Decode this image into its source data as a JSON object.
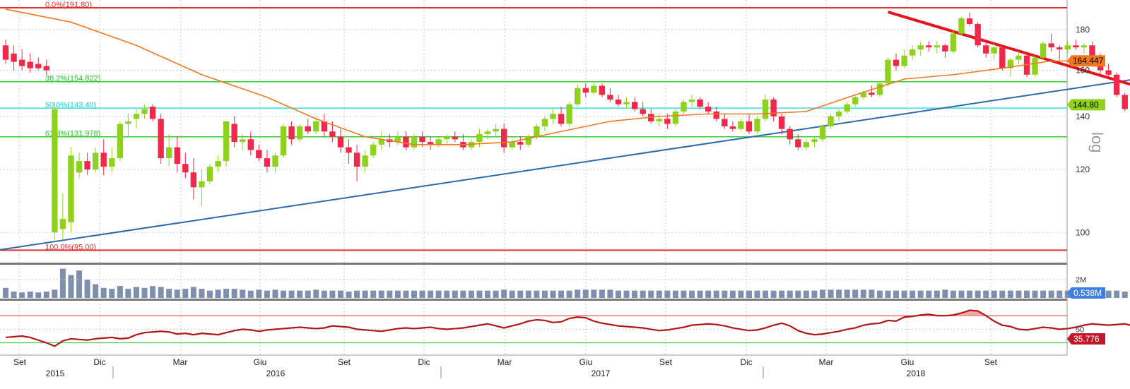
{
  "chart_data": {
    "type": "candlestick",
    "scale": "log",
    "scale_label": "log",
    "grid": true,
    "ylim": [
      92,
      193
    ],
    "y_ticks": [
      100,
      120,
      140,
      160,
      180
    ],
    "x_month_labels": [
      "Set",
      "Dic",
      "Mar",
      "Giu",
      "Set",
      "Dic",
      "Mar",
      "Giu",
      "Set",
      "Dic",
      "Mar",
      "Giu",
      "Set"
    ],
    "x_year_labels": [
      "2015",
      "2016",
      "2017",
      "2018"
    ],
    "colors": {
      "up": "#8fd21e",
      "down": "#f0284a",
      "ma": "#f07820",
      "trend_up": "#2f6aa8",
      "trend_down": "#e3161e",
      "fib_0": "#e23030",
      "fib_382": "#33cc33",
      "fib_50": "#33e0e0",
      "fib_618": "#33cc33",
      "fib_100": "#e23030",
      "volume": "#7f8fae",
      "rsi": "#b01818"
    },
    "fibonacci": [
      {
        "label": "0.0%(191.80)",
        "value": 191.8
      },
      {
        "label": "38.2%(154.822)",
        "value": 154.822
      },
      {
        "label": "50.0%(143.40)",
        "value": 143.4
      },
      {
        "label": "61.8%(131.978)",
        "value": 131.978
      },
      {
        "label": "100.0%(95.00)",
        "value": 95.0
      }
    ],
    "price_badges": [
      {
        "text": "164.447",
        "value": 164.447,
        "color": "#f07820"
      },
      {
        "text": "144.80",
        "value": 144.8,
        "color": "#8fd21e"
      }
    ],
    "candles_ohlc": [
      [
        172,
        175,
        163,
        165
      ],
      [
        168,
        172,
        160,
        164
      ],
      [
        165,
        170,
        160,
        162
      ],
      [
        164,
        168,
        159,
        161
      ],
      [
        163,
        166,
        160,
        161
      ],
      [
        162,
        165,
        158,
        160
      ],
      [
        100,
        146,
        98,
        143
      ],
      [
        101,
        112,
        98,
        104
      ],
      [
        103,
        128,
        100,
        125
      ],
      [
        119,
        126,
        117,
        123
      ],
      [
        123,
        126,
        118,
        120
      ],
      [
        120,
        128,
        119,
        126
      ],
      [
        126,
        131,
        118,
        121
      ],
      [
        121,
        128,
        119,
        124
      ],
      [
        124,
        138,
        123,
        137
      ],
      [
        137,
        141,
        132,
        138
      ],
      [
        139,
        143,
        135,
        141
      ],
      [
        141,
        145,
        139,
        143
      ],
      [
        144,
        145,
        138,
        139
      ],
      [
        139,
        141,
        122,
        124
      ],
      [
        124,
        133,
        121,
        128
      ],
      [
        128,
        132,
        119,
        122
      ],
      [
        122,
        126,
        117,
        119
      ],
      [
        119,
        124,
        110,
        114
      ],
      [
        114,
        120,
        108,
        116
      ],
      [
        116,
        122,
        115,
        121
      ],
      [
        121,
        125,
        119,
        123
      ],
      [
        123,
        138,
        121,
        138
      ],
      [
        137,
        140,
        128,
        130
      ],
      [
        130,
        133,
        127,
        131
      ],
      [
        131,
        134,
        125,
        127
      ],
      [
        127,
        129,
        123,
        124
      ],
      [
        124,
        127,
        119,
        121
      ],
      [
        121,
        126,
        119,
        125
      ],
      [
        125,
        137,
        124,
        136
      ],
      [
        136,
        138,
        129,
        131
      ],
      [
        131,
        137,
        130,
        136
      ],
      [
        136,
        139,
        133,
        134
      ],
      [
        134,
        140,
        133,
        138
      ],
      [
        138,
        141,
        132,
        134
      ],
      [
        134,
        138,
        130,
        132
      ],
      [
        132,
        135,
        126,
        128
      ],
      [
        128,
        131,
        122,
        126
      ],
      [
        126,
        129,
        116,
        121
      ],
      [
        121,
        127,
        119,
        125
      ],
      [
        125,
        130,
        124,
        129
      ],
      [
        129,
        134,
        127,
        131
      ],
      [
        131,
        133,
        128,
        130
      ],
      [
        130,
        134,
        129,
        132
      ],
      [
        132,
        134,
        127,
        128
      ],
      [
        128,
        133,
        127,
        132
      ],
      [
        132,
        134,
        128,
        130
      ],
      [
        130,
        132,
        127,
        129
      ],
      [
        129,
        132,
        128,
        131
      ],
      [
        131,
        133,
        129,
        132
      ],
      [
        132,
        134,
        130,
        131
      ],
      [
        130,
        133,
        127,
        128
      ],
      [
        128,
        131,
        127,
        130
      ],
      [
        130,
        135,
        128,
        133
      ],
      [
        133,
        135,
        131,
        134
      ],
      [
        134,
        137,
        132,
        135
      ],
      [
        135,
        137,
        126,
        128
      ],
      [
        128,
        131,
        127,
        130
      ],
      [
        130,
        132,
        127,
        129
      ],
      [
        129,
        133,
        128,
        132
      ],
      [
        132,
        137,
        131,
        136
      ],
      [
        136,
        140,
        134,
        139
      ],
      [
        139,
        143,
        137,
        141
      ],
      [
        141,
        144,
        136,
        137
      ],
      [
        137,
        146,
        136,
        145
      ],
      [
        145,
        154,
        144,
        152
      ],
      [
        152,
        154,
        148,
        150
      ],
      [
        150,
        155,
        149,
        153
      ],
      [
        153,
        154,
        148,
        149
      ],
      [
        149,
        152,
        146,
        147
      ],
      [
        147,
        149,
        144,
        145
      ],
      [
        145,
        148,
        143,
        146
      ],
      [
        146,
        148,
        142,
        143
      ],
      [
        143,
        146,
        140,
        141
      ],
      [
        141,
        143,
        137,
        138
      ],
      [
        138,
        141,
        136,
        139
      ],
      [
        139,
        141,
        135,
        137
      ],
      [
        137,
        143,
        136,
        142
      ],
      [
        142,
        147,
        141,
        146
      ],
      [
        146,
        149,
        144,
        147
      ],
      [
        147,
        148,
        143,
        144
      ],
      [
        144,
        146,
        141,
        142
      ],
      [
        142,
        144,
        138,
        139
      ],
      [
        139,
        141,
        135,
        136
      ],
      [
        136,
        138,
        134,
        135
      ],
      [
        135,
        139,
        134,
        138
      ],
      [
        138,
        141,
        133,
        134
      ],
      [
        134,
        140,
        133,
        139
      ],
      [
        139,
        149,
        138,
        147
      ],
      [
        147,
        148,
        138,
        140
      ],
      [
        140,
        141,
        133,
        135
      ],
      [
        135,
        136,
        129,
        131
      ],
      [
        131,
        133,
        127,
        128
      ],
      [
        128,
        131,
        127,
        130
      ],
      [
        130,
        132,
        128,
        131
      ],
      [
        131,
        137,
        130,
        136
      ],
      [
        136,
        141,
        135,
        140
      ],
      [
        140,
        143,
        138,
        142
      ],
      [
        142,
        146,
        141,
        145
      ],
      [
        145,
        149,
        144,
        148
      ],
      [
        148,
        151,
        147,
        150
      ],
      [
        150,
        153,
        148,
        149
      ],
      [
        149,
        155,
        148,
        154
      ],
      [
        154,
        166,
        153,
        165
      ],
      [
        165,
        168,
        160,
        162
      ],
      [
        162,
        170,
        161,
        167
      ],
      [
        167,
        172,
        165,
        170
      ],
      [
        170,
        174,
        167,
        172
      ],
      [
        172,
        174,
        169,
        171
      ],
      [
        171,
        174,
        168,
        172
      ],
      [
        172,
        173,
        166,
        169
      ],
      [
        169,
        180,
        168,
        178
      ],
      [
        178,
        187,
        177,
        186
      ],
      [
        186,
        189,
        182,
        183
      ],
      [
        183,
        184,
        171,
        172
      ],
      [
        172,
        175,
        166,
        168
      ],
      [
        168,
        173,
        165,
        171
      ],
      [
        171,
        172,
        160,
        161
      ],
      [
        161,
        166,
        157,
        165
      ],
      [
        165,
        169,
        163,
        167
      ],
      [
        167,
        168,
        157,
        158
      ],
      [
        158,
        167,
        157,
        166
      ],
      [
        166,
        174,
        165,
        173
      ],
      [
        173,
        178,
        169,
        171
      ],
      [
        171,
        172,
        165,
        170
      ],
      [
        170,
        174,
        168,
        172
      ],
      [
        172,
        175,
        170,
        171
      ],
      [
        171,
        173,
        168,
        172
      ],
      [
        172,
        174,
        163,
        165
      ],
      [
        165,
        168,
        158,
        160
      ],
      [
        160,
        163,
        157,
        158
      ],
      [
        158,
        159,
        148,
        149
      ],
      [
        149,
        150,
        142,
        143
      ],
      [
        143,
        146,
        140,
        144.8
      ]
    ],
    "moving_average": [
      [
        0,
        191
      ],
      [
        8,
        184
      ],
      [
        16,
        172
      ],
      [
        24,
        158
      ],
      [
        32,
        148
      ],
      [
        38,
        139
      ],
      [
        44,
        132
      ],
      [
        50,
        129
      ],
      [
        56,
        129
      ],
      [
        62,
        130
      ],
      [
        68,
        134
      ],
      [
        74,
        138
      ],
      [
        80,
        140
      ],
      [
        86,
        141
      ],
      [
        92,
        141
      ],
      [
        98,
        142
      ],
      [
        104,
        149
      ],
      [
        110,
        156
      ],
      [
        116,
        158
      ],
      [
        122,
        161
      ],
      [
        128,
        164.4
      ],
      [
        131,
        164.4
      ]
    ],
    "trendlines": {
      "rising": {
        "from": [
          -1,
          95
        ],
        "to": [
          138,
          155.8
        ]
      },
      "falling": {
        "from": [
          108,
          189.5
        ],
        "to": [
          142,
          149
        ]
      }
    },
    "volume": {
      "label_2m": "2M",
      "badge": "0.538M",
      "values": [
        1.1,
        0.7,
        0.6,
        0.7,
        0.6,
        0.7,
        0.9,
        3.2,
        2.5,
        3.0,
        2.0,
        1.5,
        1.1,
        1.0,
        1.3,
        1.0,
        1.2,
        1.1,
        1.3,
        1.2,
        1.0,
        0.9,
        1.0,
        1.2,
        1.0,
        0.8,
        0.9,
        1.0,
        1.0,
        0.9,
        0.8,
        0.9,
        0.8,
        0.9,
        0.8,
        0.8,
        0.8,
        0.8,
        0.9,
        0.8,
        0.8,
        0.8,
        0.7,
        0.8,
        0.8,
        0.8,
        0.8,
        0.8,
        0.8,
        0.8,
        0.8,
        0.8,
        0.8,
        0.8,
        0.8,
        0.8,
        0.8,
        0.8,
        0.8,
        0.8,
        0.8,
        0.9,
        0.8,
        0.8,
        0.8,
        0.8,
        0.8,
        0.8,
        0.8,
        0.8,
        0.9,
        0.9,
        0.9,
        0.9,
        0.9,
        0.8,
        0.8,
        0.8,
        0.8,
        0.8,
        0.8,
        0.8,
        0.8,
        0.8,
        0.8,
        0.8,
        0.8,
        0.8,
        0.8,
        0.8,
        0.8,
        0.8,
        0.8,
        0.8,
        0.8,
        0.8,
        0.8,
        0.8,
        0.8,
        0.8,
        0.9,
        0.9,
        0.9,
        0.9,
        0.9,
        0.9,
        0.9,
        0.8,
        0.8,
        0.8,
        0.8,
        0.8,
        0.8,
        0.8,
        0.8,
        0.9,
        0.8,
        0.8,
        0.8,
        0.8,
        0.8,
        0.8,
        0.8,
        0.8,
        0.8,
        0.8,
        0.8,
        0.8,
        0.8,
        0.8,
        0.8,
        0.9,
        0.9,
        0.9,
        0.8,
        0.8,
        0.8,
        0.7,
        0.6
      ]
    },
    "rsi": {
      "badge": "35.776",
      "label_50": "50",
      "ylim": [
        15,
        90
      ],
      "upper": 70,
      "lower": 30,
      "values": [
        38,
        39,
        40,
        38,
        34,
        30,
        25,
        33,
        36,
        35,
        34,
        36,
        37,
        38,
        36,
        37,
        42,
        45,
        46,
        47,
        46,
        43,
        44,
        42,
        44,
        43,
        42,
        45,
        48,
        50,
        49,
        47,
        49,
        50,
        51,
        52,
        53,
        52,
        51,
        52,
        55,
        54,
        53,
        50,
        49,
        48,
        47,
        49,
        51,
        52,
        51,
        52,
        53,
        51,
        50,
        51,
        52,
        54,
        56,
        58,
        55,
        52,
        55,
        58,
        62,
        64,
        63,
        60,
        61,
        66,
        68,
        67,
        62,
        59,
        57,
        55,
        54,
        53,
        52,
        50,
        48,
        49,
        51,
        53,
        56,
        57,
        58,
        57,
        55,
        52,
        50,
        48,
        49,
        52,
        56,
        59,
        55,
        48,
        44,
        42,
        43,
        45,
        47,
        50,
        52,
        56,
        58,
        59,
        63,
        62,
        68,
        69,
        71,
        72,
        70,
        70,
        71,
        74,
        78,
        77,
        70,
        62,
        56,
        54,
        50,
        49,
        51,
        53,
        52,
        50,
        51,
        53,
        56,
        58,
        57,
        56,
        57,
        58,
        55,
        52,
        50,
        48,
        45,
        44,
        36,
        35.776
      ]
    }
  }
}
